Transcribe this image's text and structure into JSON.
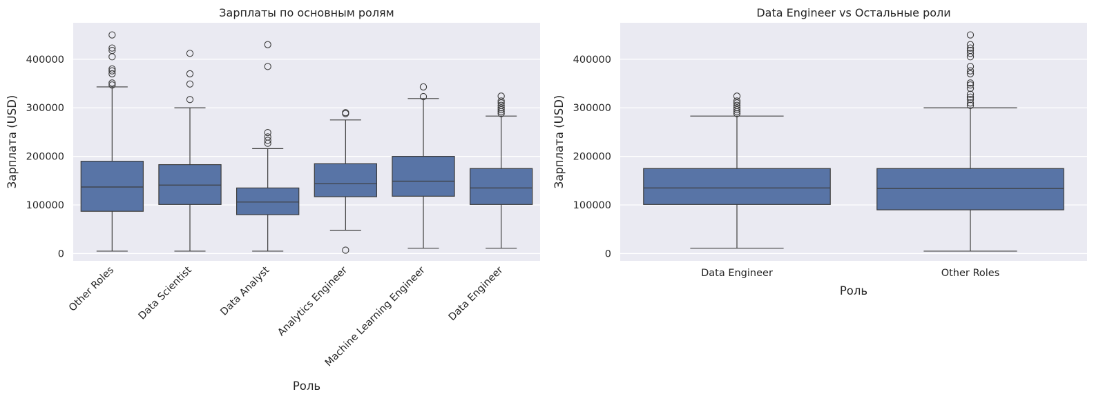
{
  "figure": {
    "background": "#ffffff",
    "axes_background": "#eaeaf2",
    "grid_color": "#ffffff",
    "box_color": "#5874a6",
    "line_color": "#3c3c3c"
  },
  "chart_data": [
    {
      "type": "box",
      "title": "Зарплаты по основным ролям",
      "xlabel": "Роль",
      "ylabel": "Зарплата (USD)",
      "ylim": [
        -15000,
        475000
      ],
      "yticks": [
        0,
        100000,
        200000,
        300000,
        400000
      ],
      "ytick_labels": [
        "0",
        "100000",
        "200000",
        "300000",
        "400000"
      ],
      "grid": true,
      "xtick_rotation": 45,
      "categories": [
        "Other Roles",
        "Data Scientist",
        "Data Analyst",
        "Analytics Engineer",
        "Machine Learning Engineer",
        "Data Engineer"
      ],
      "boxes": [
        {
          "whisker_low": 5000,
          "q1": 87000,
          "median": 137000,
          "q3": 190000,
          "whisker_high": 343000,
          "outliers": [
            347000,
            351000,
            370000,
            376000,
            380000,
            405000,
            418000,
            423000,
            450000
          ]
        },
        {
          "whisker_low": 5000,
          "q1": 101000,
          "median": 141000,
          "q3": 183000,
          "whisker_high": 300000,
          "outliers": [
            317000,
            349000,
            370000,
            412000
          ]
        },
        {
          "whisker_low": 5000,
          "q1": 80000,
          "median": 106000,
          "q3": 135000,
          "whisker_high": 216000,
          "outliers": [
            227000,
            233000,
            240000,
            249000,
            385000,
            430000
          ]
        },
        {
          "whisker_low": 48000,
          "q1": 117000,
          "median": 144000,
          "q3": 185000,
          "whisker_high": 275000,
          "outliers": [
            7000,
            288000,
            290000
          ]
        },
        {
          "whisker_low": 11000,
          "q1": 118000,
          "median": 149000,
          "q3": 200000,
          "whisker_high": 319000,
          "outliers": [
            323000,
            343000
          ]
        },
        {
          "whisker_low": 11000,
          "q1": 101000,
          "median": 135000,
          "q3": 175000,
          "whisker_high": 283000,
          "outliers": [
            288000,
            292000,
            296000,
            300000,
            305000,
            310000,
            314000,
            324000
          ]
        }
      ]
    },
    {
      "type": "box",
      "title": "Data Engineer vs Остальные роли",
      "xlabel": "Роль",
      "ylabel": "Зарплата (USD)",
      "ylim": [
        -15000,
        475000
      ],
      "yticks": [
        0,
        100000,
        200000,
        300000,
        400000
      ],
      "ytick_labels": [
        "0",
        "100000",
        "200000",
        "300000",
        "400000"
      ],
      "grid": true,
      "xtick_rotation": 0,
      "categories": [
        "Data Engineer",
        "Other Roles"
      ],
      "boxes": [
        {
          "whisker_low": 11000,
          "q1": 101000,
          "median": 135000,
          "q3": 175000,
          "whisker_high": 283000,
          "outliers": [
            288000,
            292000,
            296000,
            300000,
            305000,
            310000,
            314000,
            324000
          ]
        },
        {
          "whisker_low": 5000,
          "q1": 90000,
          "median": 134000,
          "q3": 175000,
          "whisker_high": 300000,
          "outliers": [
            305000,
            310000,
            317000,
            322000,
            328000,
            340000,
            347000,
            351000,
            370000,
            376000,
            385000,
            405000,
            412000,
            418000,
            423000,
            430000,
            450000
          ]
        }
      ]
    }
  ]
}
